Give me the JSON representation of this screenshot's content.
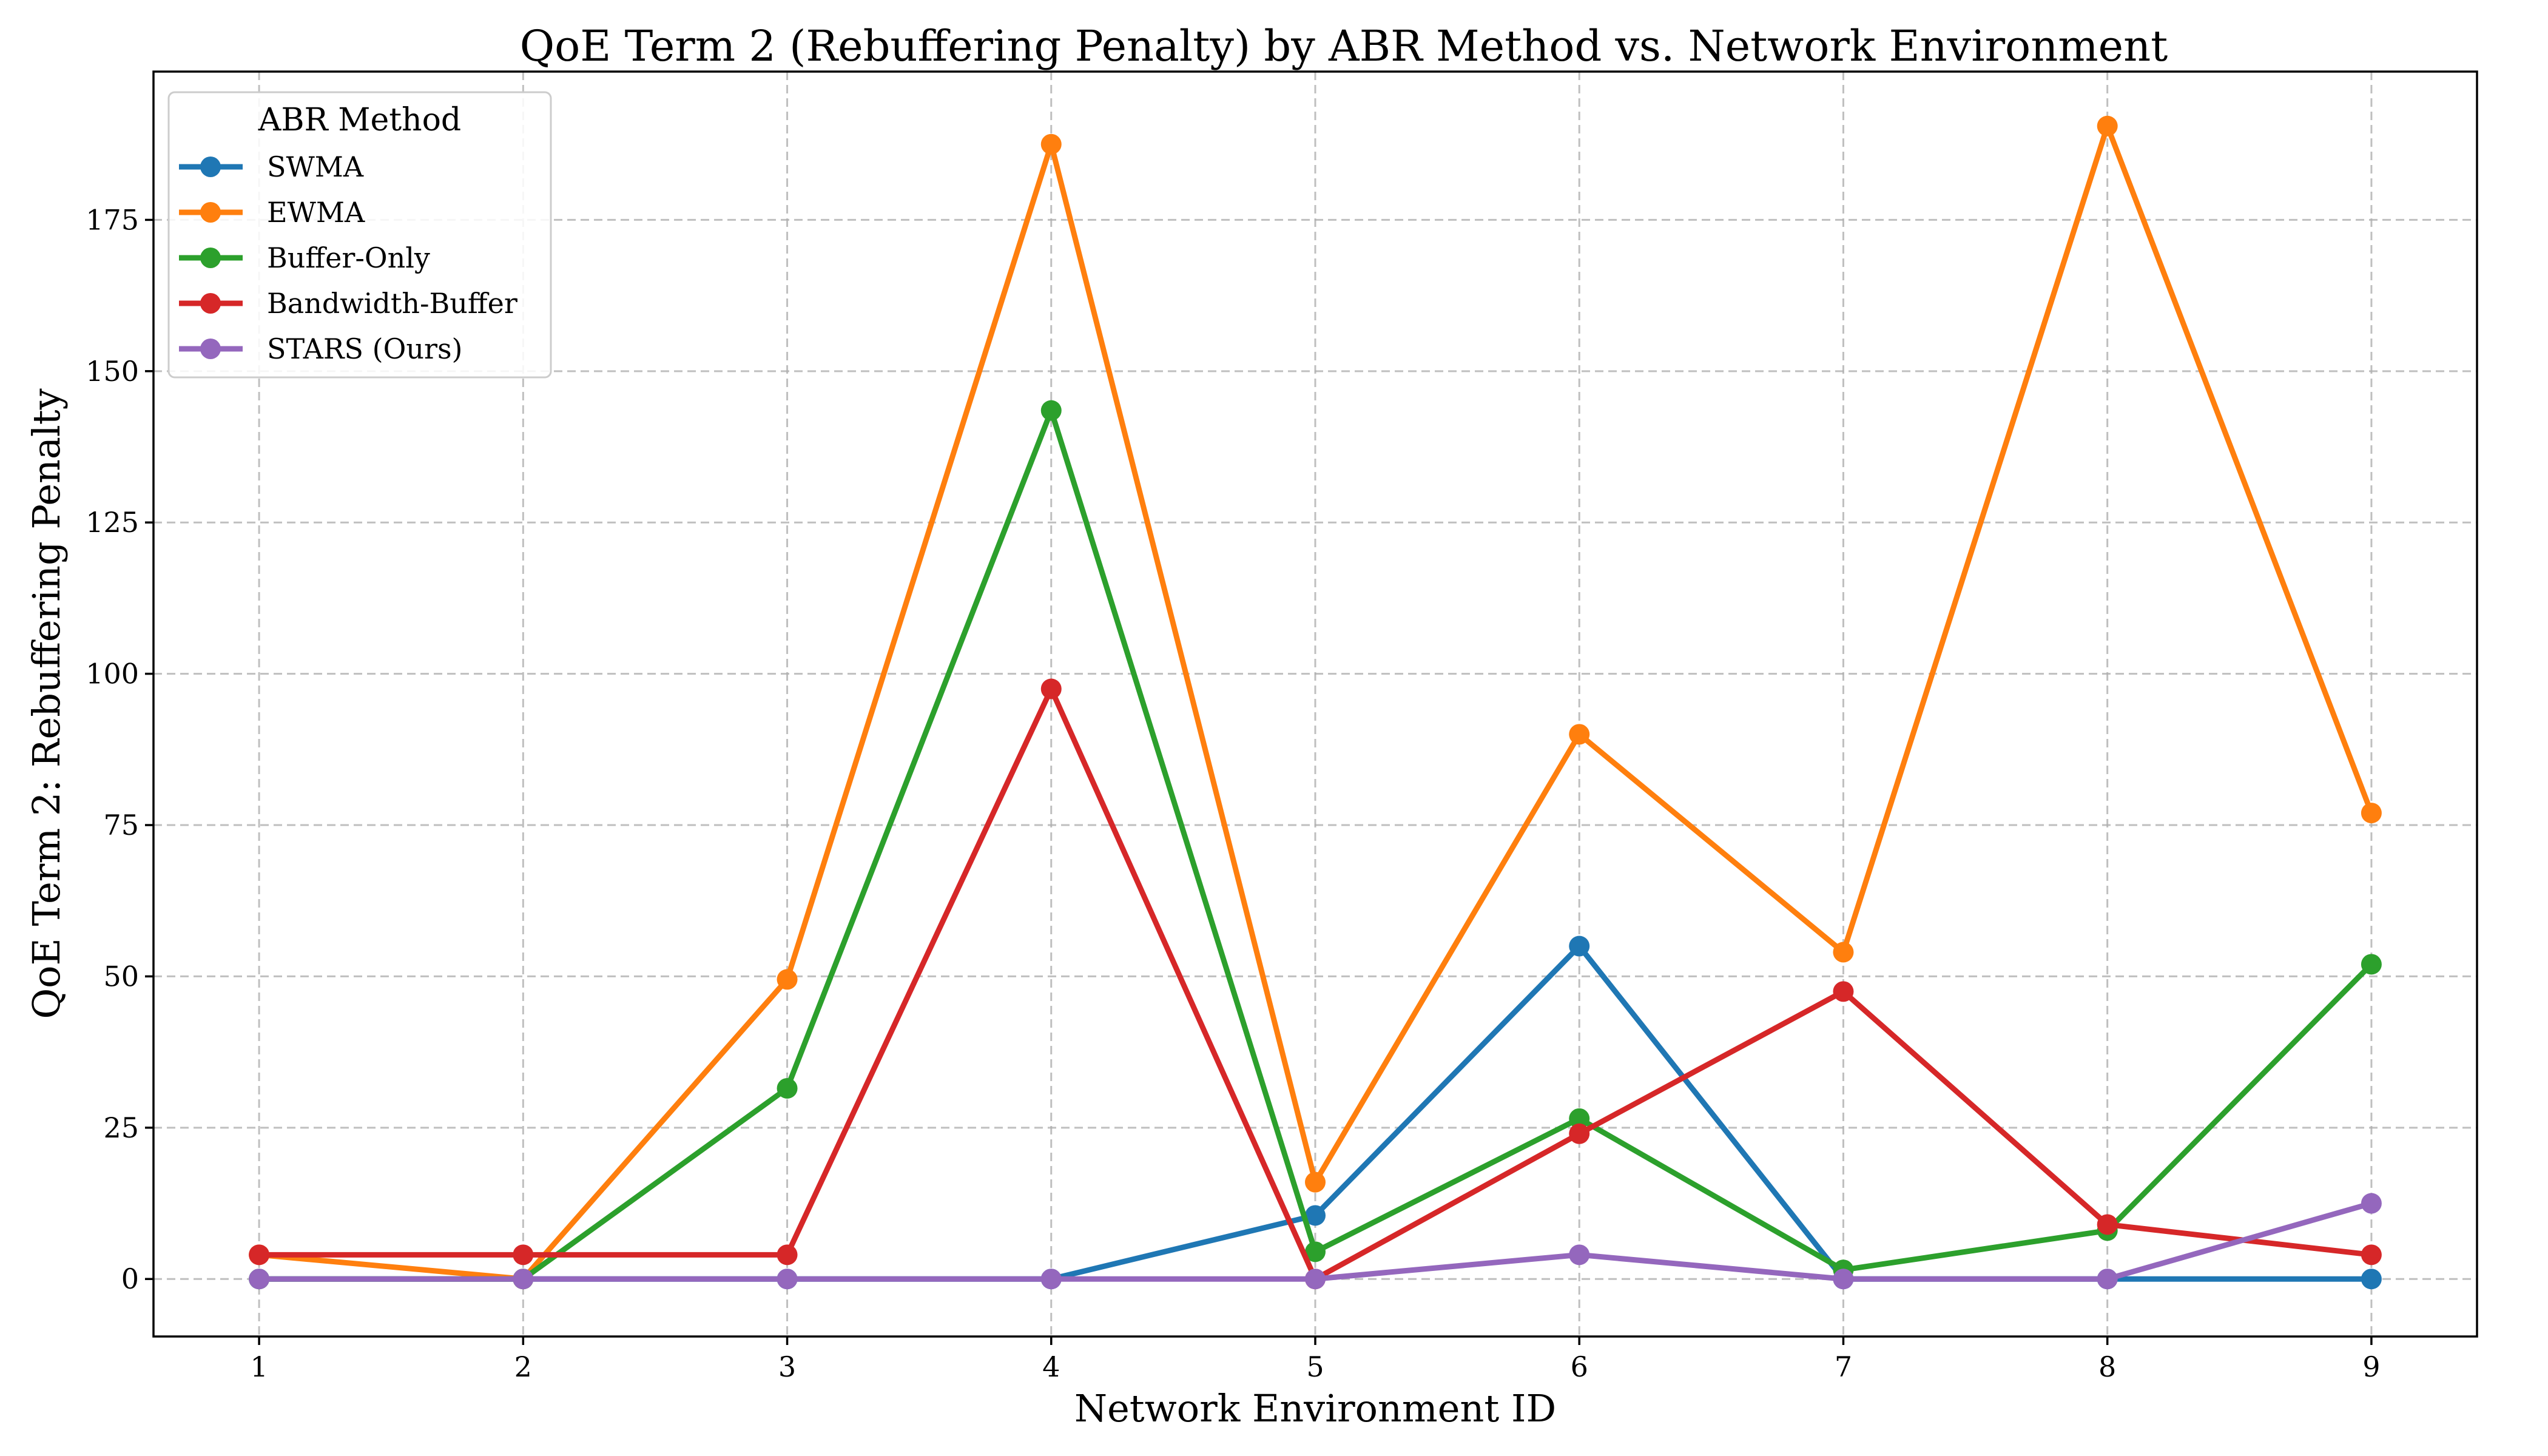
{
  "chart_data": {
    "type": "line",
    "title": "QoE Term 2 (Rebuffering Penalty) by ABR Method vs. Network Environment",
    "xlabel": "Network Environment ID",
    "ylabel": "QoE Term 2: Rebuffering Penalty",
    "x": [
      1,
      2,
      3,
      4,
      5,
      6,
      7,
      8,
      9
    ],
    "xlim": [
      0.6,
      9.4
    ],
    "ylim": [
      -9.5,
      199.5
    ],
    "xticks": [
      1,
      2,
      3,
      4,
      5,
      6,
      7,
      8,
      9
    ],
    "yticks": [
      0,
      25,
      50,
      75,
      100,
      125,
      150,
      175
    ],
    "grid": true,
    "legend": {
      "title": "ABR Method",
      "placement": "top-left"
    },
    "series": [
      {
        "name": "SWMA",
        "color": "#1f77b4",
        "values": [
          0,
          0,
          0,
          0,
          10.5,
          55,
          0,
          0,
          0
        ]
      },
      {
        "name": "EWMA",
        "color": "#ff7f0e",
        "values": [
          4,
          0,
          49.5,
          187.5,
          16,
          90,
          54,
          190.5,
          77
        ]
      },
      {
        "name": "Buffer-Only",
        "color": "#2ca02c",
        "values": [
          0,
          0,
          31.5,
          143.5,
          4.5,
          26.5,
          1.5,
          8,
          52
        ]
      },
      {
        "name": "Bandwidth-Buffer",
        "color": "#d62728",
        "values": [
          4,
          4,
          4,
          97.5,
          0,
          24,
          47.5,
          9,
          4
        ]
      },
      {
        "name": "STARS (Ours)",
        "color": "#9467bd",
        "values": [
          0,
          0,
          0,
          0,
          0,
          4,
          0,
          0,
          12.5
        ]
      }
    ]
  }
}
